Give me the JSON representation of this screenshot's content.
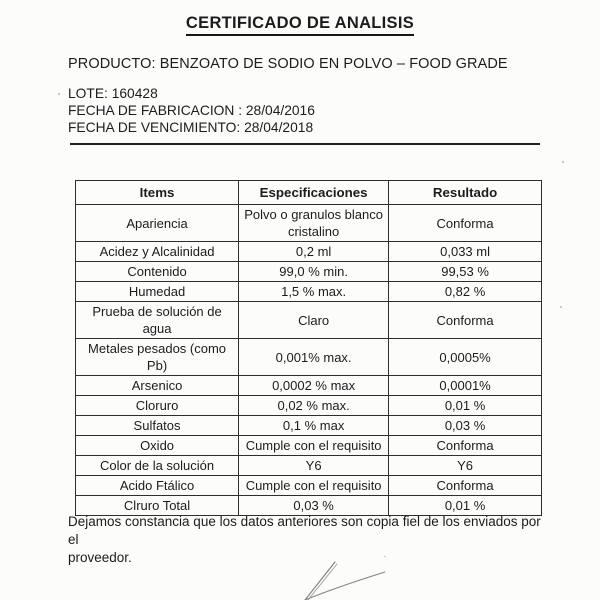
{
  "document": {
    "title": "CERTIFICADO DE ANALISIS",
    "product_line": "PRODUCTO: BENZOATO DE SODIO EN POLVO – FOOD GRADE",
    "lot": {
      "lote": "LOTE: 160428",
      "fabricacion": "FECHA DE FABRICACION : 28/04/2016",
      "vencimiento": "FECHA DE VENCIMIENTO: 28/04/2018"
    },
    "table": {
      "headers": [
        "Items",
        "Especificaciones",
        "Resultado"
      ],
      "rows": [
        [
          "Apariencia",
          "Polvo o granulos blanco cristalino",
          "Conforma"
        ],
        [
          "Acidez y Alcalinidad",
          "0,2 ml",
          "0,033 ml"
        ],
        [
          "Contenido",
          "99,0 % min.",
          "99,53 %"
        ],
        [
          "Humedad",
          "1,5 % max.",
          "0,82 %"
        ],
        [
          "Prueba de solución de agua",
          "Claro",
          "Conforma"
        ],
        [
          "Metales pesados (como Pb)",
          "0,001% max.",
          "0,0005%"
        ],
        [
          "Arsenico",
          "0,0002 % max",
          "0,0001%"
        ],
        [
          "Cloruro",
          "0,02 % max.",
          "0,01 %"
        ],
        [
          "Sulfatos",
          "0,1 % max",
          "0,03 %"
        ],
        [
          "Oxido",
          "Cumple con el requisito",
          "Conforma"
        ],
        [
          "Color de la solución",
          "Y6",
          "Y6"
        ],
        [
          "Acido Ftálico",
          "Cumple con el requisito",
          "Conforma"
        ],
        [
          "Clruro Total",
          "0,03 %",
          "0,01 %"
        ]
      ]
    },
    "footer": {
      "line1": "Dejamos constancia que los datos anteriores son copia fiel de los enviados por el",
      "line2": "proveedor."
    },
    "signature_icon": "handwritten-signature-strokes",
    "colors": {
      "ink": "#1c1c1c",
      "paper": "#fcfcfb",
      "table_border": "#2e2e2e",
      "signature_ink": "#7d7d7d"
    }
  }
}
